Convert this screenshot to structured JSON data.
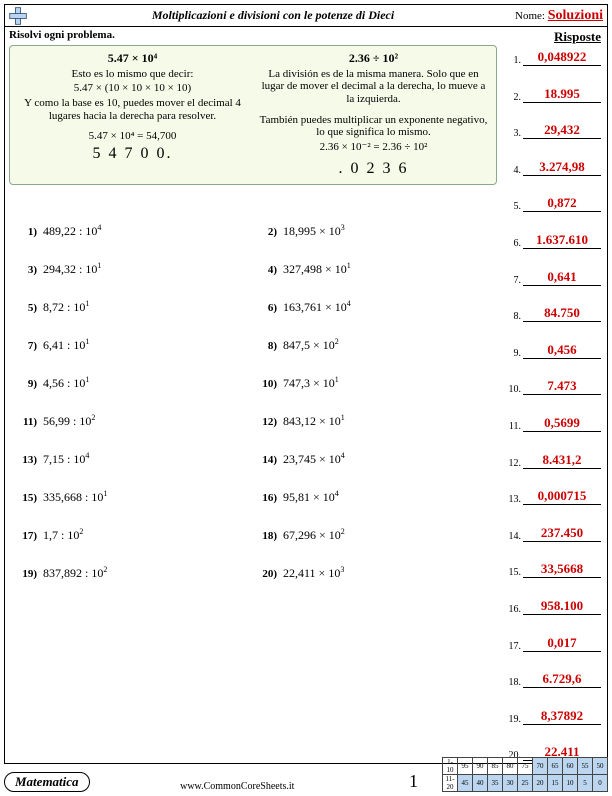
{
  "header": {
    "title": "Moltiplicazioni e divisioni con le potenze di Dieci",
    "name_label": "Nome:",
    "solutions": "Soluzioni"
  },
  "instruction": "Risolvi ogni problema.",
  "answers_head": "Risposte",
  "example": {
    "left": {
      "title": "5.47 × 10⁴",
      "l1": "Esto es lo mismo que decir:",
      "l2": "5.47 × (10 × 10 × 10 × 10)",
      "l3": "Y como la base es 10, puedes mover el decimal 4 lugares hacia la derecha para resolver.",
      "l4": "5.47 × 10⁴ = 54,700",
      "demo": "5 4 7 0 0."
    },
    "right": {
      "title": "2.36 ÷ 10²",
      "l1": "La división es de la misma manera. Solo que en lugar de mover el decimal a la derecha, lo mueve a la izquierda.",
      "l2": "También puedes multiplicar un exponente negativo, lo que significa lo mismo.",
      "l3": "2.36 × 10⁻² = 2.36 ÷ 10²",
      "demo": ". 0 2 3 6"
    }
  },
  "problems": [
    {
      "n": "1)",
      "expr": "489,22 : 10",
      "sup": "4"
    },
    {
      "n": "2)",
      "expr": "18,995 × 10",
      "sup": "3"
    },
    {
      "n": "3)",
      "expr": "294,32 : 10",
      "sup": "1"
    },
    {
      "n": "4)",
      "expr": "327,498 × 10",
      "sup": "1"
    },
    {
      "n": "5)",
      "expr": "8,72 : 10",
      "sup": "1"
    },
    {
      "n": "6)",
      "expr": "163,761 × 10",
      "sup": "4"
    },
    {
      "n": "7)",
      "expr": "6,41 : 10",
      "sup": "1"
    },
    {
      "n": "8)",
      "expr": "847,5 × 10",
      "sup": "2"
    },
    {
      "n": "9)",
      "expr": "4,56 : 10",
      "sup": "1"
    },
    {
      "n": "10)",
      "expr": "747,3 × 10",
      "sup": "1"
    },
    {
      "n": "11)",
      "expr": "56,99 : 10",
      "sup": "2"
    },
    {
      "n": "12)",
      "expr": "843,12 × 10",
      "sup": "1"
    },
    {
      "n": "13)",
      "expr": "7,15 : 10",
      "sup": "4"
    },
    {
      "n": "14)",
      "expr": "23,745 × 10",
      "sup": "4"
    },
    {
      "n": "15)",
      "expr": "335,668 : 10",
      "sup": "1"
    },
    {
      "n": "16)",
      "expr": "95,81 × 10",
      "sup": "4"
    },
    {
      "n": "17)",
      "expr": "1,7 : 10",
      "sup": "2"
    },
    {
      "n": "18)",
      "expr": "67,296 × 10",
      "sup": "2"
    },
    {
      "n": "19)",
      "expr": "837,892 : 10",
      "sup": "2"
    },
    {
      "n": "20)",
      "expr": "22,411 × 10",
      "sup": "3"
    }
  ],
  "answers": [
    {
      "n": "1.",
      "v": "0,048922"
    },
    {
      "n": "2.",
      "v": "18.995"
    },
    {
      "n": "3.",
      "v": "29,432"
    },
    {
      "n": "4.",
      "v": "3.274,98"
    },
    {
      "n": "5.",
      "v": "0,872"
    },
    {
      "n": "6.",
      "v": "1.637.610"
    },
    {
      "n": "7.",
      "v": "0,641"
    },
    {
      "n": "8.",
      "v": "84.750"
    },
    {
      "n": "9.",
      "v": "0,456"
    },
    {
      "n": "10.",
      "v": "7.473"
    },
    {
      "n": "11.",
      "v": "0,5699"
    },
    {
      "n": "12.",
      "v": "8.431,2"
    },
    {
      "n": "13.",
      "v": "0,000715"
    },
    {
      "n": "14.",
      "v": "237.450"
    },
    {
      "n": "15.",
      "v": "33,5668"
    },
    {
      "n": "16.",
      "v": "958.100"
    },
    {
      "n": "17.",
      "v": "0,017"
    },
    {
      "n": "18.",
      "v": "6.729,6"
    },
    {
      "n": "19.",
      "v": "8,37892"
    },
    {
      "n": "20.",
      "v": "22.411"
    }
  ],
  "footer": {
    "subject": "Matematica",
    "site": "www.CommonCoreSheets.it",
    "page": "1",
    "score_labels": [
      "1-10",
      "11-20"
    ],
    "score_row1": [
      "95",
      "90",
      "85",
      "80",
      "75",
      "70",
      "65",
      "60",
      "55",
      "50"
    ],
    "score_row2": [
      "45",
      "40",
      "35",
      "30",
      "25",
      "20",
      "15",
      "10",
      "5",
      "0"
    ]
  }
}
